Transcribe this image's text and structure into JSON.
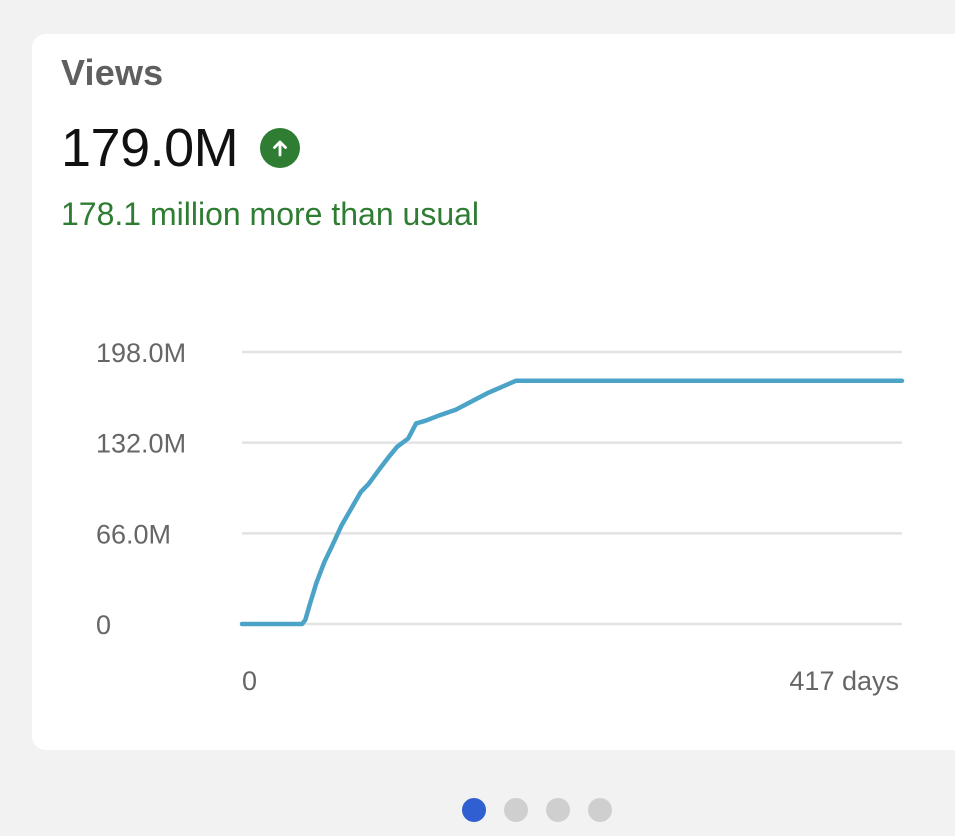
{
  "card": {
    "title": "Views",
    "value": "179.0M",
    "trend_icon": "arrow-up-circle-icon",
    "delta_text": "178.1 million more than usual"
  },
  "colors": {
    "positive": "#2e7d32",
    "line": "#4ba3c7",
    "grid": "#e3e3e3",
    "dot_active": "#2f5fd0",
    "dot_inactive": "#cfcfcf"
  },
  "chart_data": {
    "type": "line",
    "title": "",
    "xlabel": "",
    "ylabel": "",
    "x_tick_labels": [
      "0",
      "417 days"
    ],
    "y_tick_labels": [
      "198.0M",
      "132.0M",
      "66.0M",
      "0"
    ],
    "xlim": [
      0,
      417
    ],
    "ylim": [
      0,
      198
    ],
    "y_ticks": [
      0,
      66,
      132,
      198
    ],
    "grid": true,
    "series": [
      {
        "points": [
          [
            0,
            0
          ],
          [
            38,
            0
          ],
          [
            40,
            3
          ],
          [
            43,
            15
          ],
          [
            47,
            30
          ],
          [
            52,
            45
          ],
          [
            57,
            57
          ],
          [
            63,
            72
          ],
          [
            70,
            86
          ],
          [
            75,
            96
          ],
          [
            80,
            102
          ],
          [
            87,
            113
          ],
          [
            93,
            122
          ],
          [
            98,
            129
          ],
          [
            105,
            135
          ],
          [
            110,
            146
          ],
          [
            116,
            148
          ],
          [
            125,
            152
          ],
          [
            135,
            156
          ],
          [
            145,
            162
          ],
          [
            155,
            168
          ],
          [
            165,
            173
          ],
          [
            173,
            177
          ],
          [
            180,
            177
          ],
          [
            300,
            177
          ],
          [
            417,
            177
          ]
        ]
      }
    ]
  },
  "pagination": {
    "count": 4,
    "active_index": 0
  }
}
